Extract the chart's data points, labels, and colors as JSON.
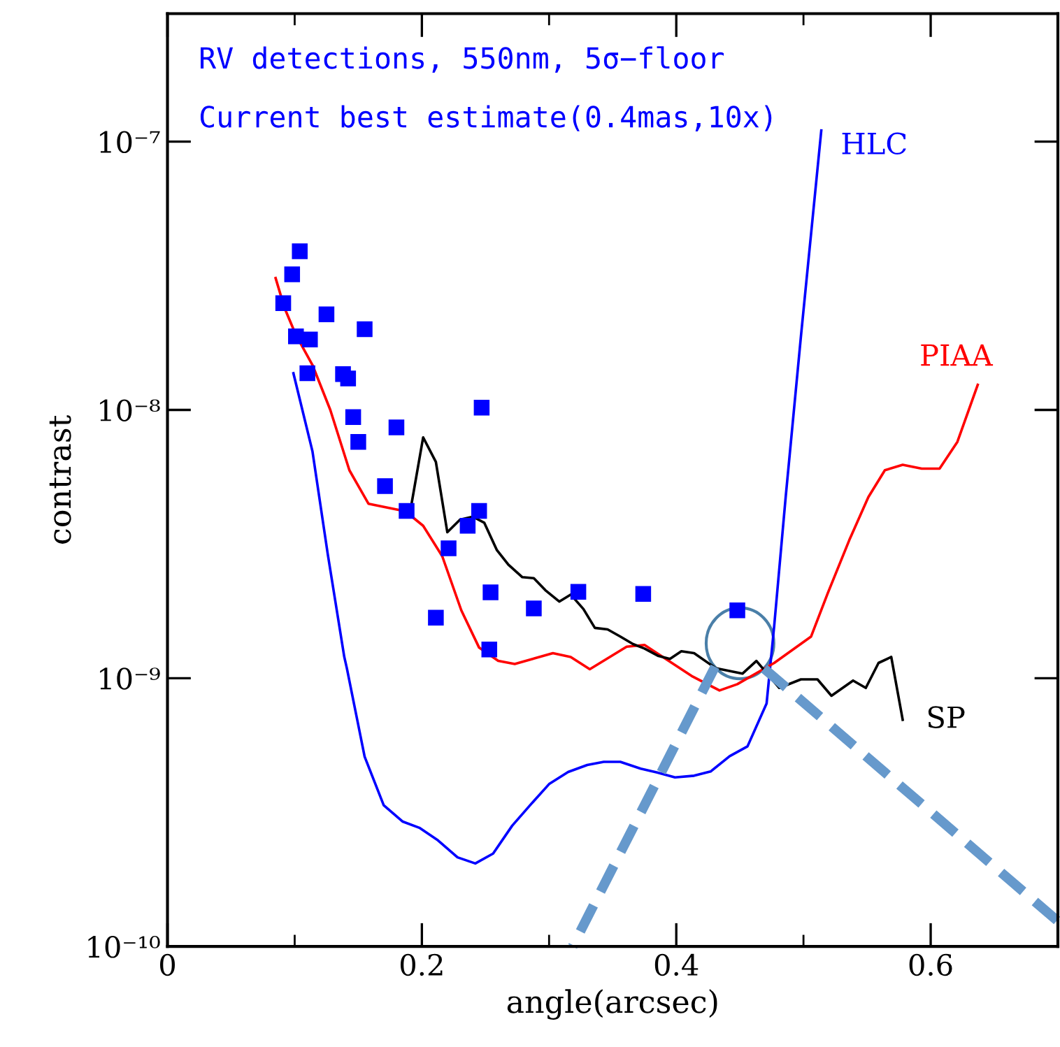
{
  "chart_data": {
    "type": "line",
    "xlabel": "angle(arcsec)",
    "ylabel": "contrast",
    "annotations": [
      "RV detections, 550nm, 5σ−floor",
      "Current best estimate(0.4mas,10x)"
    ],
    "log": "y",
    "xlim": [
      0,
      0.7
    ],
    "ylim": [
      1e-10,
      3e-07
    ],
    "xticks": [
      0,
      0.2,
      0.4,
      0.6
    ],
    "yticks": [
      {
        "value": 1e-10,
        "label": "10⁻¹⁰"
      },
      {
        "value": 1e-09,
        "label": "10⁻⁹"
      },
      {
        "value": 1e-08,
        "label": "10⁻⁸"
      },
      {
        "value": 1e-07,
        "label": "10⁻⁷"
      }
    ],
    "grid": false,
    "legend": false,
    "series": [
      {
        "name": "HLC",
        "color": "#0000ff",
        "x": [
          0.099,
          0.114,
          0.126,
          0.139,
          0.141,
          0.155,
          0.17,
          0.185,
          0.198,
          0.212,
          0.228,
          0.242,
          0.256,
          0.271,
          0.286,
          0.3,
          0.315,
          0.33,
          0.343,
          0.356,
          0.372,
          0.385,
          0.399,
          0.414,
          0.427,
          0.442,
          0.456,
          0.471,
          0.477,
          0.486,
          0.498,
          0.514
        ],
        "values": [
          1.37e-08,
          7e-09,
          2.9e-09,
          1.2e-09,
          1.09e-09,
          5.1e-10,
          3.36e-10,
          2.92e-10,
          2.77e-10,
          2.5e-10,
          2.15e-10,
          2.04e-10,
          2.22e-10,
          2.82e-10,
          3.4e-10,
          4.03e-10,
          4.47e-10,
          4.75e-10,
          4.88e-10,
          4.88e-10,
          4.6e-10,
          4.45e-10,
          4.27e-10,
          4.33e-10,
          4.49e-10,
          5.12e-10,
          5.57e-10,
          8.05e-10,
          1.57e-09,
          4.73e-09,
          1.88e-08,
          1.1e-07
        ]
      },
      {
        "name": "PIAA",
        "color": "#ff0000",
        "x": [
          0.085,
          0.092,
          0.101,
          0.114,
          0.128,
          0.143,
          0.158,
          0.187,
          0.201,
          0.216,
          0.231,
          0.245,
          0.26,
          0.273,
          0.303,
          0.317,
          0.332,
          0.361,
          0.375,
          0.412,
          0.434,
          0.448,
          0.477,
          0.506,
          0.519,
          0.536,
          0.551,
          0.564,
          0.578,
          0.593,
          0.607,
          0.621,
          0.637
        ],
        "values": [
          3.1e-08,
          2.4e-08,
          1.9e-08,
          1.47e-08,
          1e-08,
          5.96e-09,
          4.47e-09,
          4.19e-09,
          3.7e-09,
          2.85e-09,
          1.79e-09,
          1.3e-09,
          1.16e-09,
          1.13e-09,
          1.24e-09,
          1.2e-09,
          1.08e-09,
          1.31e-09,
          1.33e-09,
          1.02e-09,
          9e-10,
          9.5e-10,
          1.14e-09,
          1.43e-09,
          2.07e-09,
          3.27e-09,
          4.73e-09,
          5.96e-09,
          6.24e-09,
          6.04e-09,
          6.04e-09,
          7.6e-09,
          1.24e-08
        ]
      },
      {
        "name": "SP",
        "color": "#000000",
        "x": [
          0.192,
          0.201,
          0.211,
          0.22,
          0.23,
          0.24,
          0.249,
          0.259,
          0.268,
          0.279,
          0.288,
          0.297,
          0.308,
          0.317,
          0.327,
          0.336,
          0.346,
          0.356,
          0.366,
          0.375,
          0.386,
          0.395,
          0.404,
          0.414,
          0.431,
          0.452,
          0.463,
          0.481,
          0.498,
          0.511,
          0.522,
          0.539,
          0.549,
          0.559,
          0.569,
          0.578
        ],
        "values": [
          4.5e-09,
          7.9e-09,
          6.4e-09,
          3.5e-09,
          3.9e-09,
          4e-09,
          3.8e-09,
          3e-09,
          2.65e-09,
          2.38e-09,
          2.36e-09,
          2.13e-09,
          1.93e-09,
          2.05e-09,
          1.81e-09,
          1.54e-09,
          1.52e-09,
          1.43e-09,
          1.34e-09,
          1.29e-09,
          1.21e-09,
          1.18e-09,
          1.26e-09,
          1.24e-09,
          1.09e-09,
          1.04e-09,
          1.16e-09,
          9.2e-10,
          9.9e-10,
          9.9e-10,
          8.6e-10,
          9.8e-10,
          9.2e-10,
          1.14e-09,
          1.2e-09,
          7e-10
        ]
      },
      {
        "type": "scatter",
        "marker": "square",
        "color": "#0000ff",
        "x": [
          0.104,
          0.098,
          0.091,
          0.125,
          0.155,
          0.101,
          0.112,
          0.11,
          0.138,
          0.142,
          0.146,
          0.18,
          0.15,
          0.247,
          0.171,
          0.188,
          0.245,
          0.236,
          0.221,
          0.254,
          0.211,
          0.253,
          0.288,
          0.323,
          0.374,
          0.448
        ],
        "values": [
          3.9e-08,
          3.2e-08,
          2.5e-08,
          2.27e-08,
          2e-08,
          1.88e-08,
          1.83e-08,
          1.37e-08,
          1.36e-08,
          1.31e-08,
          9.4e-09,
          8.6e-09,
          7.6e-09,
          1.02e-08,
          5.2e-09,
          4.2e-09,
          4.2e-09,
          3.7e-09,
          3.05e-09,
          2.09e-09,
          1.68e-09,
          1.28e-09,
          1.82e-09,
          2.1e-09,
          2.06e-09,
          1.79e-09
        ]
      }
    ]
  }
}
